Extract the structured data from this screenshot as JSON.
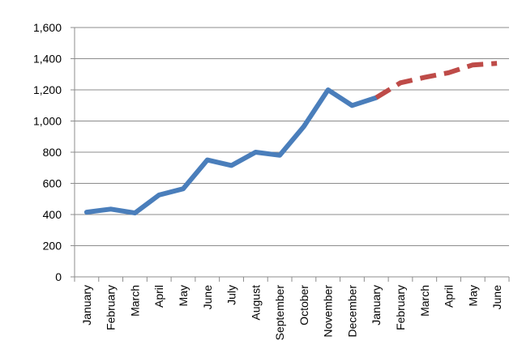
{
  "chart_data": {
    "type": "line",
    "categories": [
      "January",
      "February",
      "March",
      "April",
      "May",
      "June",
      "July",
      "August",
      "September",
      "October",
      "November",
      "December",
      "January",
      "February",
      "March",
      "April",
      "May",
      "June"
    ],
    "series": [
      {
        "values": [
          415,
          435,
          410,
          525,
          565,
          750,
          715,
          800,
          780,
          965,
          1200,
          1100,
          1150,
          null,
          null,
          null,
          null,
          null
        ],
        "color": "#4a7ebb",
        "style": "solid"
      },
      {
        "values": [
          null,
          null,
          null,
          null,
          null,
          null,
          null,
          null,
          null,
          null,
          null,
          null,
          1150,
          1245,
          1280,
          1310,
          1360,
          1370
        ],
        "color": "#be4b48",
        "style": "dashed"
      }
    ],
    "y_ticks": [
      "0",
      "200",
      "400",
      "600",
      "800",
      "1,000",
      "1,200",
      "1,400",
      "1,600"
    ],
    "ylim": [
      0,
      1600
    ],
    "grid": true,
    "legend": "none"
  }
}
